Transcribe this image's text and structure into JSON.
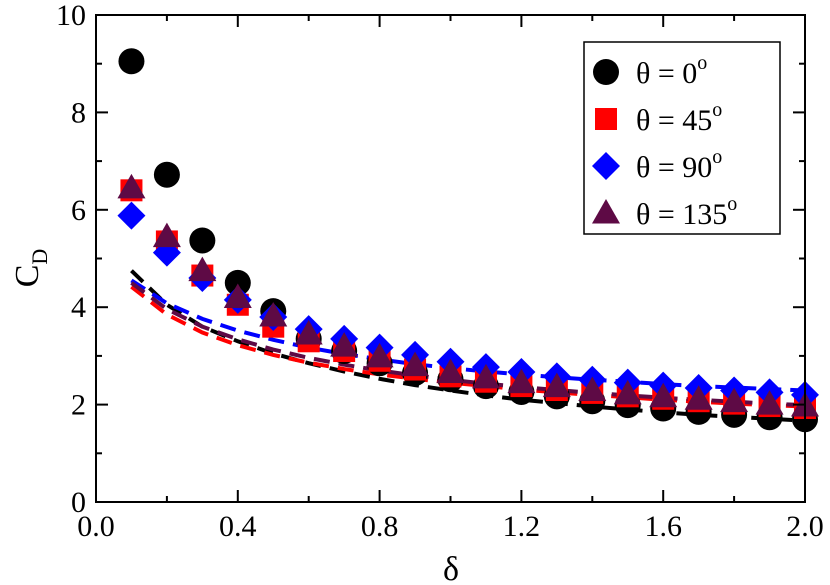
{
  "chart_data": {
    "type": "scatter",
    "xlabel": "δ",
    "ylabel": "C",
    "ylabel_sub": "D",
    "xlim": [
      0.0,
      2.0
    ],
    "ylim": [
      0,
      10
    ],
    "x_ticks": [
      "0.0",
      "0.4",
      "0.8",
      "1.2",
      "1.6",
      "2.0"
    ],
    "x_tick_values": [
      0.0,
      0.4,
      0.8,
      1.2,
      1.6,
      2.0
    ],
    "y_ticks": [
      "0",
      "2",
      "4",
      "6",
      "8",
      "10"
    ],
    "y_tick_values": [
      0,
      2,
      4,
      6,
      8,
      10
    ],
    "legend_position": "top-right",
    "x": [
      0.1,
      0.2,
      0.3,
      0.4,
      0.5,
      0.6,
      0.7,
      0.8,
      0.9,
      1.0,
      1.1,
      1.2,
      1.3,
      1.4,
      1.5,
      1.6,
      1.7,
      1.8,
      1.9,
      2.0
    ],
    "series": [
      {
        "name": "θ = 0",
        "legend_base": "θ = 0",
        "legend_sup": "o",
        "marker": "circle",
        "color": "#000000",
        "values": [
          9.05,
          6.72,
          5.37,
          4.5,
          3.92,
          3.35,
          3.1,
          2.85,
          2.65,
          2.52,
          2.38,
          2.26,
          2.17,
          2.07,
          1.99,
          1.92,
          1.85,
          1.79,
          1.74,
          1.7
        ],
        "fit": [
          4.75,
          4.05,
          3.6,
          3.3,
          3.05,
          2.85,
          2.68,
          2.53,
          2.4,
          2.29,
          2.19,
          2.1,
          2.03,
          1.96,
          1.9,
          1.84,
          1.79,
          1.75,
          1.71,
          1.67
        ]
      },
      {
        "name": "θ = 45",
        "legend_base": "θ = 45",
        "legend_sup": "o",
        "marker": "square",
        "color": "#ff0000",
        "values": [
          6.4,
          5.35,
          4.65,
          4.05,
          3.6,
          3.3,
          3.1,
          2.9,
          2.72,
          2.58,
          2.47,
          2.38,
          2.3,
          2.24,
          2.17,
          2.12,
          2.07,
          2.02,
          1.97,
          1.93
        ],
        "fit": [
          4.42,
          3.85,
          3.48,
          3.22,
          3.02,
          2.86,
          2.73,
          2.62,
          2.53,
          2.45,
          2.38,
          2.31,
          2.25,
          2.2,
          2.15,
          2.1,
          2.06,
          2.02,
          1.99,
          1.96
        ]
      },
      {
        "name": "θ = 90",
        "legend_base": "θ = 90",
        "legend_sup": "o",
        "marker": "diamond",
        "color": "#0000ff",
        "values": [
          5.88,
          5.12,
          4.6,
          4.15,
          3.8,
          3.55,
          3.35,
          3.17,
          3.02,
          2.88,
          2.77,
          2.67,
          2.58,
          2.51,
          2.45,
          2.39,
          2.34,
          2.29,
          2.25,
          2.2
        ],
        "fit": [
          4.55,
          4.08,
          3.76,
          3.52,
          3.33,
          3.17,
          3.04,
          2.93,
          2.83,
          2.75,
          2.68,
          2.62,
          2.56,
          2.51,
          2.47,
          2.42,
          2.38,
          2.35,
          2.32,
          2.29
        ]
      },
      {
        "name": "θ = 135",
        "legend_base": "θ = 135",
        "legend_sup": "o",
        "marker": "triangle",
        "color": "#5e0a45",
        "values": [
          6.45,
          5.45,
          4.75,
          4.2,
          3.82,
          3.45,
          3.2,
          2.98,
          2.8,
          2.66,
          2.55,
          2.45,
          2.37,
          2.29,
          2.22,
          2.16,
          2.11,
          2.06,
          2.01,
          1.97
        ],
        "fit": [
          4.5,
          3.96,
          3.6,
          3.34,
          3.13,
          2.96,
          2.82,
          2.7,
          2.6,
          2.51,
          2.43,
          2.36,
          2.3,
          2.24,
          2.19,
          2.14,
          2.1,
          2.06,
          2.02,
          1.99
        ]
      }
    ]
  }
}
